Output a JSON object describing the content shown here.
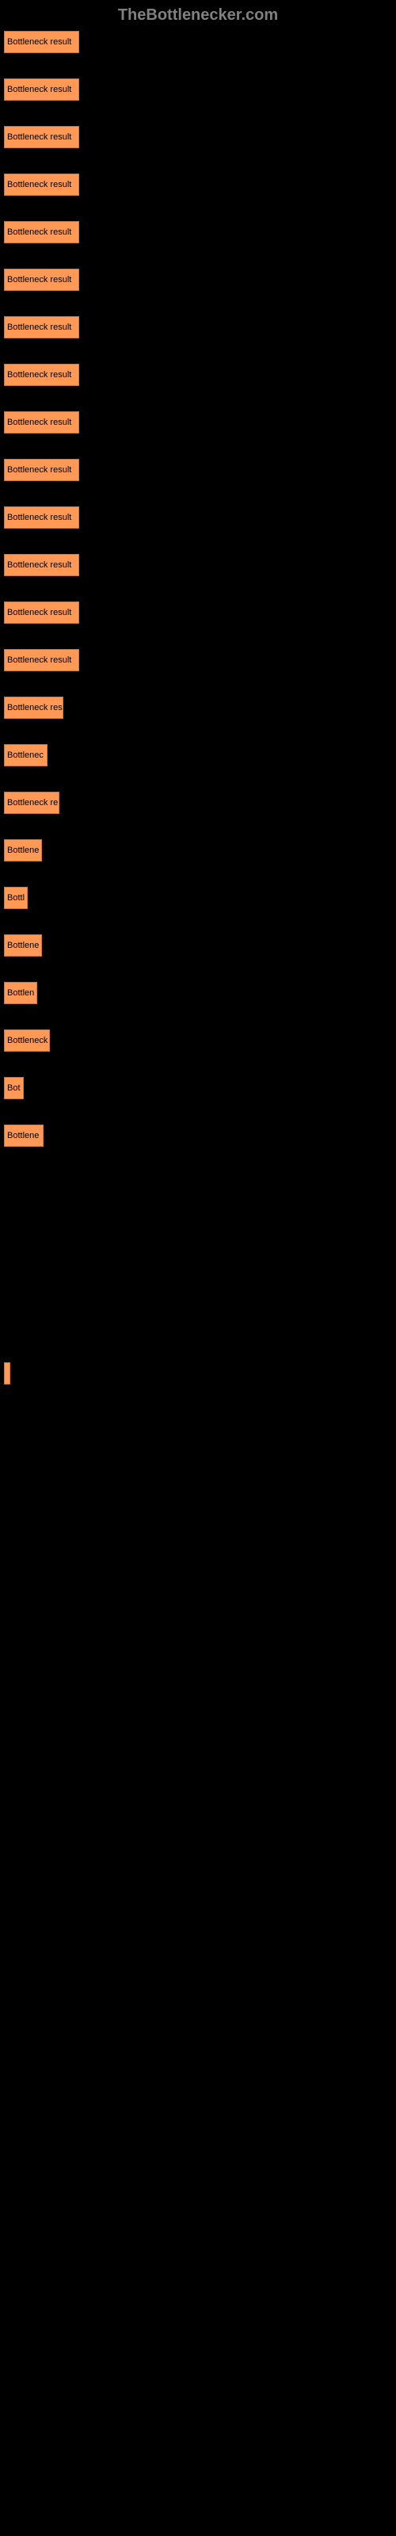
{
  "header": {
    "title": "TheBottlenecker.com"
  },
  "chart": {
    "type": "bar",
    "bar_color": "#ff9955",
    "bar_border_color": "#cc7733",
    "background_color": "#000000",
    "text_color": "#000000",
    "bars": [
      {
        "label": "Bottleneck result",
        "width": 95
      },
      {
        "label": "Bottleneck result",
        "width": 95
      },
      {
        "label": "Bottleneck result",
        "width": 95
      },
      {
        "label": "Bottleneck result",
        "width": 95
      },
      {
        "label": "Bottleneck result",
        "width": 95
      },
      {
        "label": "Bottleneck result",
        "width": 95
      },
      {
        "label": "Bottleneck result",
        "width": 95
      },
      {
        "label": "Bottleneck result",
        "width": 95
      },
      {
        "label": "Bottleneck result",
        "width": 95
      },
      {
        "label": "Bottleneck result",
        "width": 95
      },
      {
        "label": "Bottleneck result",
        "width": 95
      },
      {
        "label": "Bottleneck result",
        "width": 95
      },
      {
        "label": "Bottleneck result",
        "width": 95
      },
      {
        "label": "Bottleneck result",
        "width": 95
      },
      {
        "label": "Bottleneck res",
        "width": 75
      },
      {
        "label": "Bottlenec",
        "width": 55
      },
      {
        "label": "Bottleneck re",
        "width": 70
      },
      {
        "label": "Bottlene",
        "width": 48
      },
      {
        "label": "Bottl",
        "width": 30
      },
      {
        "label": "Bottlene",
        "width": 48
      },
      {
        "label": "Bottlen",
        "width": 42
      },
      {
        "label": "Bottleneck",
        "width": 58
      },
      {
        "label": "Bot",
        "width": 25
      },
      {
        "label": "Bottlene",
        "width": 50
      },
      {
        "label": "",
        "width": 0
      },
      {
        "label": "",
        "width": 0
      },
      {
        "label": "",
        "width": 0
      },
      {
        "label": "",
        "width": 0
      },
      {
        "label": "",
        "width": 8
      },
      {
        "label": "",
        "width": 0
      },
      {
        "label": "",
        "width": 0
      },
      {
        "label": "",
        "width": 0
      },
      {
        "label": "",
        "width": 0
      },
      {
        "label": "",
        "width": 0
      },
      {
        "label": "",
        "width": 0
      },
      {
        "label": "",
        "width": 0
      },
      {
        "label": "",
        "width": 0
      },
      {
        "label": "",
        "width": 0
      },
      {
        "label": "",
        "width": 0
      },
      {
        "label": "",
        "width": 0
      },
      {
        "label": "",
        "width": 0
      },
      {
        "label": "",
        "width": 0
      },
      {
        "label": "",
        "width": 0
      },
      {
        "label": "",
        "width": 0
      },
      {
        "label": "",
        "width": 0
      },
      {
        "label": "",
        "width": 0
      },
      {
        "label": "",
        "width": 0
      },
      {
        "label": "",
        "width": 0
      },
      {
        "label": "",
        "width": 0
      },
      {
        "label": "",
        "width": 0
      },
      {
        "label": "",
        "width": 0
      },
      {
        "label": "",
        "width": 0
      }
    ]
  }
}
